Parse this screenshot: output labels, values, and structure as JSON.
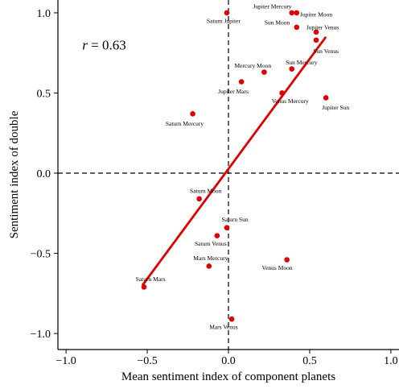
{
  "chart_data": {
    "type": "scatter",
    "xlabel": "Mean sentiment index of component planets",
    "ylabel": "Sentiment index of double",
    "xlim": [
      -1.05,
      1.05
    ],
    "ylim": [
      -1.1,
      1.08
    ],
    "xticks": [
      -1.0,
      -0.5,
      0.0,
      0.5,
      1.0
    ],
    "xtick_labels": [
      "−1.0",
      "−0.5",
      "0.0",
      "0.5",
      "1.0"
    ],
    "yticks": [
      -1.0,
      -0.5,
      0.0,
      0.5,
      1.0
    ],
    "ytick_labels": [
      "−1.0",
      "−0.5",
      "0.0",
      "0.5",
      "1.0"
    ],
    "annotation": {
      "r_symbol": "r",
      "r_text": " = 0.63",
      "x": -0.9,
      "y": 0.8
    },
    "reference_lines": {
      "x": 0,
      "y": 0,
      "style": "dashed"
    },
    "point_color": "#e00000",
    "regression_line": {
      "color": "#e00000",
      "x": [
        -0.53,
        0.6
      ],
      "y": [
        -0.7,
        0.85
      ]
    },
    "points": [
      {
        "label": "Saturn Jupiter",
        "x": -0.01,
        "y": 1.0,
        "lx": -0.03,
        "ly": 0.95
      },
      {
        "label": "Jupiter Mercury",
        "x": 0.39,
        "y": 1.0,
        "lx": 0.27,
        "ly": 1.04
      },
      {
        "label": "Jupiter Moon",
        "x": 0.42,
        "y": 1.0,
        "lx": 0.54,
        "ly": 0.99
      },
      {
        "label": "Sun Moon",
        "x": 0.42,
        "y": 0.91,
        "lx": 0.3,
        "ly": 0.94
      },
      {
        "label": "Jupiter Venus",
        "x": 0.54,
        "y": 0.88,
        "lx": 0.58,
        "ly": 0.91
      },
      {
        "label": "Sun Venus",
        "x": 0.54,
        "y": 0.83,
        "lx": 0.6,
        "ly": 0.76
      },
      {
        "label": "Mercury Moon",
        "x": 0.22,
        "y": 0.63,
        "lx": 0.15,
        "ly": 0.67
      },
      {
        "label": "Sun Mercury",
        "x": 0.39,
        "y": 0.65,
        "lx": 0.45,
        "ly": 0.69
      },
      {
        "label": "Jupiter Mars",
        "x": 0.08,
        "y": 0.57,
        "lx": 0.03,
        "ly": 0.51
      },
      {
        "label": "Venus Mercury",
        "x": 0.33,
        "y": 0.5,
        "lx": 0.38,
        "ly": 0.45
      },
      {
        "label": "Jupiter Sun",
        "x": 0.6,
        "y": 0.47,
        "lx": 0.66,
        "ly": 0.41
      },
      {
        "label": "Saturn Mercury",
        "x": -0.22,
        "y": 0.37,
        "lx": -0.27,
        "ly": 0.31
      },
      {
        "label": "Saturn Moon",
        "x": -0.18,
        "y": -0.16,
        "lx": -0.14,
        "ly": -0.11
      },
      {
        "label": "Saturn Sun",
        "x": -0.01,
        "y": -0.34,
        "lx": 0.04,
        "ly": -0.29
      },
      {
        "label": "Saturn Venus",
        "x": -0.07,
        "y": -0.39,
        "lx": -0.11,
        "ly": -0.44
      },
      {
        "label": "Mars Mercury",
        "x": -0.12,
        "y": -0.58,
        "lx": -0.11,
        "ly": -0.53
      },
      {
        "label": "Venus Moon",
        "x": 0.36,
        "y": -0.54,
        "lx": 0.3,
        "ly": -0.59
      },
      {
        "label": "Saturn Mars",
        "x": -0.52,
        "y": -0.71,
        "lx": -0.48,
        "ly": -0.66
      },
      {
        "label": "Mars Venus",
        "x": 0.02,
        "y": -0.91,
        "lx": -0.03,
        "ly": -0.96
      }
    ]
  }
}
